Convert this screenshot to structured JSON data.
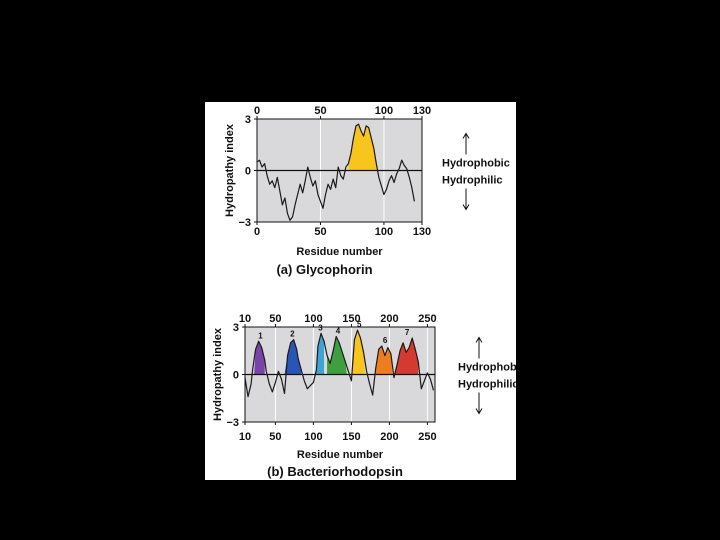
{
  "chart_data": [
    {
      "type": "line",
      "caption": "(a) Glycophorin",
      "xlabel": "Residue number",
      "ylabel": "Hydropathy index",
      "xlim": [
        0,
        130
      ],
      "ylim": [
        -3,
        3
      ],
      "x_ticks": [
        "0",
        "50",
        "100",
        "130"
      ],
      "y_ticks": [
        "3",
        "0",
        "−3"
      ],
      "annotations": {
        "above": "Hydrophobic",
        "below": "Hydrophilic"
      },
      "series": [
        {
          "x": [
            0,
            2,
            4,
            6,
            8,
            10,
            12,
            14,
            16,
            18,
            20,
            22,
            24,
            26,
            28,
            30,
            32,
            34,
            36,
            38,
            40,
            42,
            44,
            46,
            48,
            50,
            52,
            54,
            56,
            58,
            60,
            62,
            64,
            66,
            68,
            70,
            72,
            74,
            76,
            78,
            80,
            82,
            84,
            86,
            88,
            90,
            92,
            94,
            96,
            98,
            100,
            102,
            104,
            106,
            108,
            110,
            112,
            114,
            116,
            118,
            120,
            122,
            124
          ],
          "y": [
            0.5,
            0.6,
            0.2,
            0.4,
            -0.3,
            -0.8,
            -0.6,
            -1.0,
            -0.4,
            -1.2,
            -2.0,
            -1.6,
            -2.5,
            -2.9,
            -2.7,
            -2.0,
            -1.4,
            -0.8,
            -1.3,
            -0.6,
            0.2,
            -0.4,
            -0.9,
            -0.6,
            -1.4,
            -1.8,
            -2.2,
            -1.4,
            -0.8,
            -1.1,
            -0.5,
            -1.0,
            0.2,
            -0.3,
            -0.5,
            0.2,
            0.4,
            1.0,
            1.9,
            2.6,
            2.7,
            2.3,
            2.0,
            2.6,
            2.5,
            1.9,
            1.3,
            0.4,
            -0.4,
            -0.9,
            -1.4,
            -1.1,
            -0.6,
            -0.3,
            -0.7,
            -0.2,
            0.1,
            0.6,
            0.3,
            0.1,
            -0.4,
            -1.0,
            -1.8
          ]
        }
      ],
      "highlights": [
        {
          "label": "",
          "from": 72,
          "to": 94,
          "color": "#f7c51c"
        }
      ]
    },
    {
      "type": "line",
      "caption": "(b) Bacteriorhodopsin",
      "xlabel": "Residue number",
      "ylabel": "Hydropathy index",
      "xlim": [
        10,
        260
      ],
      "ylim": [
        -3,
        3
      ],
      "x_ticks": [
        "10",
        "50",
        "100",
        "150",
        "200",
        "250"
      ],
      "y_ticks": [
        "3",
        "0",
        "−3"
      ],
      "annotations": {
        "above": "Hydrophobic",
        "below": "Hydrophilic"
      },
      "series": [
        {
          "x": [
            10,
            14,
            18,
            20,
            24,
            28,
            32,
            36,
            38,
            42,
            46,
            50,
            54,
            58,
            62,
            66,
            70,
            74,
            78,
            80,
            84,
            88,
            92,
            96,
            100,
            104,
            106,
            110,
            114,
            118,
            122,
            126,
            130,
            134,
            138,
            142,
            146,
            150,
            154,
            158,
            162,
            166,
            170,
            174,
            178,
            182,
            186,
            190,
            194,
            198,
            202,
            206,
            210,
            214,
            218,
            222,
            226,
            230,
            234,
            238,
            242,
            246,
            250,
            254,
            258
          ],
          "y": [
            -0.2,
            -1.4,
            -0.6,
            0.3,
            1.6,
            2.1,
            1.7,
            0.9,
            0.2,
            -0.6,
            -1.1,
            -0.5,
            0.2,
            -0.3,
            -1.2,
            1.2,
            2.0,
            2.2,
            1.6,
            1.0,
            0.3,
            -0.4,
            -0.9,
            -0.7,
            -0.5,
            0.3,
            1.8,
            2.6,
            2.1,
            1.2,
            0.7,
            1.5,
            2.4,
            2.0,
            1.4,
            0.8,
            0.2,
            -0.4,
            2.2,
            2.8,
            2.3,
            1.4,
            0.2,
            -0.6,
            -1.3,
            0.4,
            1.6,
            1.8,
            1.2,
            1.7,
            1.3,
            -0.2,
            0.6,
            1.5,
            2.0,
            1.4,
            1.7,
            2.3,
            1.6,
            0.8,
            -0.9,
            -0.4,
            0.1,
            -0.3,
            -1.0
          ]
        }
      ],
      "highlights": [
        {
          "label": "1",
          "from": 22,
          "to": 36,
          "color": "#7a43a8"
        },
        {
          "label": "2",
          "from": 58,
          "to": 84,
          "color": "#2a55b8"
        },
        {
          "label": "3",
          "from": 102,
          "to": 114,
          "color": "#3ea4d6"
        },
        {
          "label": "4",
          "from": 118,
          "to": 144,
          "color": "#3f9e3f"
        },
        {
          "label": "5",
          "from": 150,
          "to": 168,
          "color": "#f7c51c"
        },
        {
          "label": "6",
          "from": 182,
          "to": 204,
          "color": "#ee7d20"
        },
        {
          "label": "7",
          "from": 206,
          "to": 238,
          "color": "#d43a2f"
        }
      ]
    }
  ]
}
